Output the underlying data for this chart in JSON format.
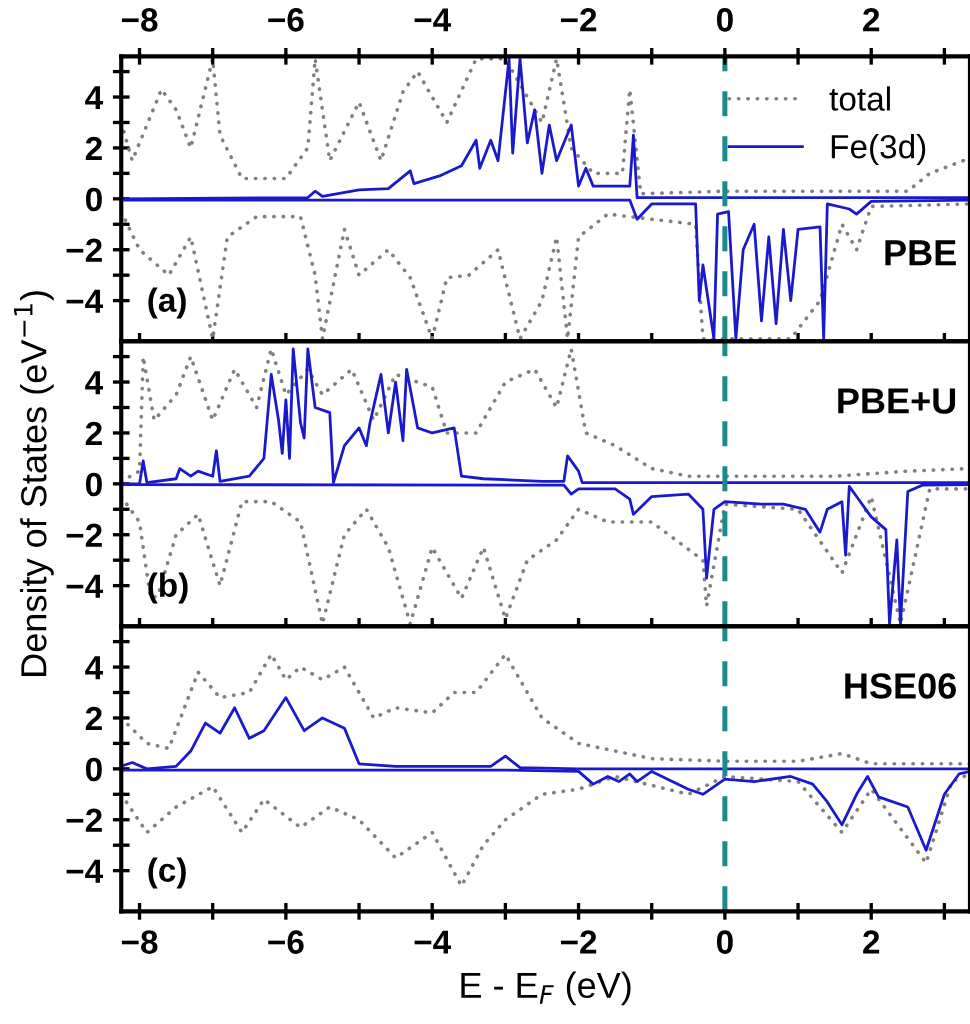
{
  "chart_data": [
    {
      "type": "line",
      "ylabel": null,
      "xlim": [
        -8.25,
        3.35
      ],
      "ylim": [
        -5.6,
        5.6
      ],
      "x2lim": [
        -8.25,
        3.35
      ],
      "x2ticks": [
        -8,
        {
          "value": -7,
          "label": null
        },
        -6,
        {
          "value": -5,
          "label": null
        },
        -4,
        {
          "value": -3,
          "label": null
        },
        -2,
        {
          "value": -1,
          "label": null
        },
        0,
        {
          "value": 1,
          "label": null
        },
        2,
        {
          "value": 3,
          "label": null
        }
      ],
      "xticks": [
        {
          "value": -8,
          "label": null
        },
        {
          "value": -7,
          "label": null
        },
        {
          "value": -6,
          "label": null
        },
        {
          "value": -5,
          "label": null
        },
        {
          "value": -4,
          "label": null
        },
        {
          "value": -3,
          "label": null
        },
        {
          "value": -2,
          "label": null
        },
        {
          "value": -1,
          "label": null
        },
        {
          "value": 0,
          "label": null
        },
        {
          "value": 1,
          "label": null
        },
        {
          "value": 2,
          "label": null
        },
        {
          "value": 3,
          "label": null
        }
      ],
      "yticks": [
        -4,
        {
          "value": -3,
          "label": null
        },
        -2,
        {
          "value": -1,
          "label": null
        },
        0,
        {
          "value": 1,
          "label": null
        },
        2,
        {
          "value": 3,
          "label": null
        },
        4,
        {
          "value": 5,
          "label": null
        }
      ],
      "tick_labels": "y",
      "legend": "top right",
      "grid": false,
      "ref_lines": [
        {
          "axis": "x",
          "value": 0,
          "color": "#1a8a8a",
          "line_style": "dashed"
        }
      ],
      "annotations": [
        "(a)",
        "PBE"
      ],
      "series": [
        {
          "name": "total",
          "color": "#808080",
          "line_style": "dotted",
          "x": [
            -8.25,
            -8.1,
            -7.7,
            -7.5,
            -7.3,
            -7.0,
            -6.9,
            -6.6,
            -6.0,
            -5.7,
            -5.6,
            -5.4,
            -5.0,
            -4.7,
            -4.4,
            -4.2,
            -4.0,
            -3.8,
            -3.4,
            -3.0,
            -2.8,
            -2.5,
            -2.3,
            -2.1,
            -1.8,
            -1.4,
            -1.3,
            -1.15,
            0,
            2.5,
            2.8,
            3.35
          ],
          "values": [
            3.0,
            1.5,
            4.3,
            3.5,
            2.0,
            5.5,
            2.5,
            0.8,
            0.8,
            2.0,
            5.5,
            1.5,
            3.8,
            1.5,
            4.2,
            5.0,
            4.0,
            3.0,
            5.5,
            5.5,
            4.5,
            3.0,
            5.5,
            2.0,
            1.0,
            1.0,
            4.3,
            0.2,
            0.3,
            0.3,
            1.0,
            1.6
          ]
        },
        {
          "name": "Fe(3d)",
          "color": "#1a1acc",
          "line_style": "solid",
          "x": [
            -8.25,
            -5.7,
            -5.6,
            -5.5,
            -5.0,
            -4.6,
            -4.3,
            -4.25,
            -3.9,
            -3.6,
            -3.4,
            -3.35,
            -3.2,
            -3.1,
            -2.95,
            -2.9,
            -2.8,
            -2.7,
            -2.6,
            -2.5,
            -2.4,
            -2.3,
            -2.1,
            -2.0,
            -1.9,
            -1.8,
            -1.3,
            -1.25,
            -1.2,
            3.35
          ],
          "values": [
            0,
            0.05,
            0.3,
            0.1,
            0.35,
            0.4,
            1.1,
            0.6,
            0.9,
            1.3,
            2.3,
            1.2,
            2.3,
            1.5,
            5.5,
            1.8,
            5.5,
            2.2,
            3.5,
            1.0,
            2.9,
            1.5,
            2.9,
            0.5,
            1.2,
            0.5,
            0.5,
            2.5,
            0.05,
            0.05
          ]
        },
        {
          "color": "#808080",
          "line_style": "dotted",
          "x": [
            -8.25,
            -8.0,
            -7.6,
            -7.3,
            -7.0,
            -6.8,
            -6.4,
            -5.8,
            -5.6,
            -5.5,
            -5.2,
            -5.0,
            -4.6,
            -4.3,
            -4.0,
            -3.8,
            -3.5,
            -3.1,
            -2.8,
            -2.5,
            -2.3,
            -2.15,
            -2.0,
            -1.6,
            -0.4,
            -0.3,
            0.1,
            0.5,
            0.9,
            1.3,
            1.6,
            1.8,
            2.0,
            3.35
          ],
          "values": [
            -0.5,
            -2.0,
            -3.0,
            -1.5,
            -5.5,
            -1.5,
            -0.7,
            -0.7,
            -3.0,
            -5.5,
            -1.2,
            -3.0,
            -2.0,
            -3.1,
            -5.5,
            -3.1,
            -3.0,
            -2.0,
            -5.5,
            -4.0,
            -1.5,
            -5.5,
            -1.5,
            -0.6,
            -1.0,
            -5.5,
            -5.5,
            -5.5,
            -5.5,
            -4.0,
            -1.0,
            -2.0,
            -0.3,
            -0.2
          ]
        },
        {
          "color": "#1a1acc",
          "line_style": "solid",
          "x": [
            -8.25,
            -1.3,
            -1.2,
            -1.0,
            -0.4,
            -0.35,
            -0.3,
            -0.15,
            -0.1,
            0.05,
            0.15,
            0.25,
            0.4,
            0.5,
            0.6,
            0.7,
            0.8,
            0.9,
            1.0,
            1.3,
            1.35,
            1.4,
            1.7,
            1.8,
            2.0,
            3.35
          ],
          "values": [
            -0.05,
            -0.05,
            -0.8,
            -0.2,
            -0.2,
            -4.0,
            -2.6,
            -5.5,
            -0.6,
            -0.5,
            -5.5,
            -2.0,
            -1.0,
            -4.8,
            -1.5,
            -4.9,
            -1.2,
            -4.0,
            -1.2,
            -1.1,
            -5.5,
            -0.2,
            -0.4,
            -0.6,
            -0.1,
            -0.05
          ]
        }
      ]
    },
    {
      "type": "line",
      "ylabel": "Density of States (eV$^{−1}$)",
      "xlim": [
        -8.25,
        3.35
      ],
      "ylim": [
        -5.6,
        5.6
      ],
      "xticks": [
        {
          "value": -8,
          "label": null
        },
        {
          "value": -7,
          "label": null
        },
        {
          "value": -6,
          "label": null
        },
        {
          "value": -5,
          "label": null
        },
        {
          "value": -4,
          "label": null
        },
        {
          "value": -3,
          "label": null
        },
        {
          "value": -2,
          "label": null
        },
        {
          "value": -1,
          "label": null
        },
        {
          "value": 0,
          "label": null
        },
        {
          "value": 1,
          "label": null
        },
        {
          "value": 2,
          "label": null
        },
        {
          "value": 3,
          "label": null
        }
      ],
      "yticks": [
        -4,
        {
          "value": -3,
          "label": null
        },
        -2,
        {
          "value": -1,
          "label": null
        },
        0,
        {
          "value": 1,
          "label": null
        },
        2,
        {
          "value": 3,
          "label": null
        },
        4,
        {
          "value": 5,
          "label": null
        }
      ],
      "tick_labels": "y",
      "grid": false,
      "ref_lines": [
        {
          "axis": "x",
          "value": 0,
          "color": "#1a8a8a",
          "line_style": "dashed"
        }
      ],
      "annotations": [
        "(b)",
        "PBE+U"
      ],
      "series": [
        {
          "color": "#808080",
          "line_style": "dotted",
          "x": [
            -8.25,
            -8.0,
            -7.95,
            -7.8,
            -7.5,
            -7.3,
            -7.0,
            -6.7,
            -6.4,
            -6.2,
            -6.0,
            -5.7,
            -5.5,
            -5.1,
            -4.8,
            -4.5,
            -4.0,
            -3.8,
            -3.4,
            -3.0,
            -2.6,
            -2.3,
            -2.1,
            -1.9,
            -1.5,
            -1.0,
            -0.5,
            0.5,
            1.5,
            2.5,
            3.35
          ],
          "values": [
            0.1,
            0.5,
            5.0,
            2.5,
            3.5,
            5.0,
            2.5,
            4.5,
            3.0,
            5.3,
            3.5,
            4.5,
            3.5,
            4.5,
            2.5,
            4.3,
            3.8,
            2.0,
            2.0,
            4.0,
            4.5,
            3.0,
            5.3,
            2.0,
            1.5,
            0.6,
            0.3,
            0.3,
            0.3,
            0.5,
            0.6
          ]
        },
        {
          "color": "#1a1acc",
          "line_style": "solid",
          "x": [
            -8.25,
            -8.0,
            -7.95,
            -7.9,
            -7.5,
            -7.45,
            -7.3,
            -7.2,
            -7.0,
            -6.95,
            -6.9,
            -6.5,
            -6.3,
            -6.2,
            -6.1,
            -6.05,
            -6.0,
            -5.95,
            -5.9,
            -5.8,
            -5.75,
            -5.7,
            -5.6,
            -5.4,
            -5.35,
            -5.2,
            -5.0,
            -4.9,
            -4.85,
            -4.7,
            -4.6,
            -4.5,
            -4.4,
            -4.35,
            -4.2,
            -4.0,
            -3.7,
            -3.6,
            -3.3,
            -2.5,
            -2.2,
            -2.15,
            -2.0,
            -1.95,
            3.35
          ],
          "values": [
            0,
            0,
            0.9,
            0.05,
            0.2,
            0.6,
            0.3,
            0.5,
            0.3,
            1.3,
            0.1,
            0.3,
            1.0,
            4.3,
            2.5,
            1.2,
            3.3,
            1.0,
            5.3,
            2.4,
            1.8,
            5.3,
            3.0,
            2.8,
            0.05,
            1.5,
            2.2,
            1.5,
            2.4,
            4.3,
            2.0,
            4.0,
            1.7,
            4.5,
            2.2,
            2.0,
            2.2,
            0.3,
            0.2,
            0.1,
            0.1,
            1.1,
            0.5,
            0.05,
            0.05
          ]
        },
        {
          "color": "#808080",
          "line_style": "dotted",
          "x": [
            -8.25,
            -8.0,
            -7.85,
            -7.75,
            -7.5,
            -7.2,
            -6.9,
            -6.6,
            -6.2,
            -5.8,
            -5.5,
            -5.2,
            -4.9,
            -4.6,
            -4.3,
            -4.0,
            -3.6,
            -3.3,
            -3.0,
            -2.7,
            -2.3,
            -2.0,
            -1.6,
            -1.0,
            -0.3,
            -0.25,
            0,
            1.0,
            1.6,
            2.0,
            2.4,
            2.8,
            3.35
          ],
          "values": [
            -0.5,
            -1.5,
            -4.5,
            -4.4,
            -2.0,
            -1.2,
            -4.0,
            -0.7,
            -0.7,
            -1.5,
            -5.5,
            -2.0,
            -1.0,
            -2.5,
            -5.5,
            -2.5,
            -4.5,
            -2.5,
            -5.3,
            -3.0,
            -2.2,
            -1.0,
            -1.5,
            -1.5,
            -3.0,
            -4.8,
            -0.8,
            -1.0,
            -3.5,
            -0.5,
            -5.5,
            -0.2,
            -0.2
          ]
        },
        {
          "color": "#1a1acc",
          "line_style": "solid",
          "x": [
            -8.25,
            -2.2,
            -2.1,
            -2.0,
            -1.5,
            -1.3,
            -1.25,
            -1.0,
            -0.5,
            -0.3,
            -0.25,
            -0.15,
            0,
            0.5,
            0.8,
            1.1,
            1.3,
            1.4,
            1.6,
            1.65,
            1.7,
            1.8,
            2.0,
            2.2,
            2.25,
            2.35,
            2.4,
            2.5,
            2.7,
            3.35
          ],
          "values": [
            -0.03,
            -0.05,
            -0.4,
            -0.2,
            -0.2,
            -0.6,
            -1.2,
            -0.5,
            -0.4,
            -1.0,
            -3.7,
            -1.0,
            -0.7,
            -0.8,
            -0.8,
            -1.0,
            -1.9,
            -1.0,
            -0.7,
            -2.8,
            -0.1,
            -0.5,
            -1.3,
            -1.8,
            -5.5,
            -2.2,
            -5.5,
            -0.3,
            -0.05,
            -0.03
          ]
        }
      ]
    },
    {
      "type": "line",
      "xlabel": "E - E$_{F}$ (eV)",
      "xlim": [
        -8.25,
        3.35
      ],
      "ylim": [
        -5.6,
        5.6
      ],
      "xticks": [
        -8,
        {
          "value": -7,
          "label": null
        },
        -6,
        {
          "value": -5,
          "label": null
        },
        -4,
        {
          "value": -3,
          "label": null
        },
        -2,
        {
          "value": -1,
          "label": null
        },
        0,
        {
          "value": 1,
          "label": null
        },
        2,
        {
          "value": 3,
          "label": null
        }
      ],
      "yticks": [
        -4,
        {
          "value": -3,
          "label": null
        },
        -2,
        {
          "value": -1,
          "label": null
        },
        0,
        {
          "value": 1,
          "label": null
        },
        2,
        {
          "value": 3,
          "label": null
        },
        4,
        {
          "value": 5,
          "label": null
        }
      ],
      "grid": false,
      "ref_lines": [
        {
          "axis": "x",
          "value": 0,
          "color": "#1a8a8a",
          "line_style": "dashed"
        }
      ],
      "annotations": [
        "(c)",
        "HSE06"
      ],
      "series": [
        {
          "color": "#808080",
          "line_style": "dotted",
          "x": [
            -8.25,
            -7.9,
            -7.6,
            -7.2,
            -6.9,
            -6.5,
            -6.2,
            -6.0,
            -5.8,
            -5.5,
            -5.2,
            -4.8,
            -4.5,
            -4.0,
            -3.7,
            -3.4,
            -3.0,
            -2.5,
            -2.0,
            -1.0,
            0,
            1.0,
            1.6,
            2.0,
            3.35
          ],
          "values": [
            2.0,
            1.0,
            0.8,
            3.8,
            2.8,
            3.0,
            4.5,
            3.5,
            4.0,
            3.5,
            4.0,
            2.0,
            2.4,
            2.2,
            3.0,
            3.0,
            4.5,
            2.0,
            1.0,
            0.4,
            0.3,
            0.3,
            0.6,
            0.2,
            0.2
          ]
        },
        {
          "color": "#1a1acc",
          "line_style": "solid",
          "x": [
            -8.25,
            -8.1,
            -7.9,
            -7.5,
            -7.3,
            -7.1,
            -6.9,
            -6.7,
            -6.5,
            -6.3,
            -6.0,
            -5.75,
            -5.5,
            -5.2,
            -5.0,
            -4.5,
            -3.2,
            -3.0,
            -2.8,
            -2.0,
            3.35
          ],
          "values": [
            0.1,
            0.25,
            0.0,
            0.1,
            0.7,
            1.8,
            1.4,
            2.4,
            1.2,
            1.5,
            2.8,
            1.5,
            2.0,
            1.6,
            0.2,
            0.1,
            0.1,
            0.5,
            0.05,
            0.0,
            0.0
          ]
        },
        {
          "color": "#808080",
          "line_style": "dotted",
          "x": [
            -8.25,
            -7.9,
            -7.5,
            -7.0,
            -6.6,
            -6.3,
            -5.8,
            -5.4,
            -5.0,
            -4.5,
            -4.0,
            -3.6,
            -3.3,
            -3.0,
            -2.5,
            -2.0,
            -1.5,
            -0.5,
            0,
            1.0,
            1.6,
            2.0,
            2.75,
            3.1,
            3.35
          ],
          "values": [
            -1.0,
            -2.5,
            -1.5,
            -0.7,
            -2.5,
            -1.2,
            -2.3,
            -1.5,
            -2.0,
            -3.5,
            -2.5,
            -4.6,
            -3.0,
            -2.0,
            -1.0,
            -0.8,
            -0.3,
            -1.0,
            -0.3,
            -0.5,
            -2.5,
            -0.8,
            -3.7,
            -0.5,
            -0.2
          ]
        },
        {
          "color": "#1a1acc",
          "line_style": "solid",
          "x": [
            -8.25,
            -3,
            -2.0,
            -1.8,
            -1.6,
            -1.45,
            -1.3,
            -1.2,
            -1.0,
            -0.5,
            -0.3,
            0,
            0.4,
            0.9,
            1.2,
            1.4,
            1.6,
            1.8,
            1.95,
            2.1,
            2.5,
            2.75,
            3.0,
            3.2,
            3.35
          ],
          "values": [
            -0.05,
            -0.05,
            -0.1,
            -0.6,
            -0.3,
            -0.5,
            -0.2,
            -0.5,
            -0.1,
            -0.8,
            -1.0,
            -0.4,
            -0.5,
            -0.3,
            -0.6,
            -1.3,
            -2.2,
            -1.0,
            -0.3,
            -1.1,
            -1.5,
            -3.2,
            -1.0,
            -0.2,
            -0.1
          ]
        }
      ]
    }
  ]
}
